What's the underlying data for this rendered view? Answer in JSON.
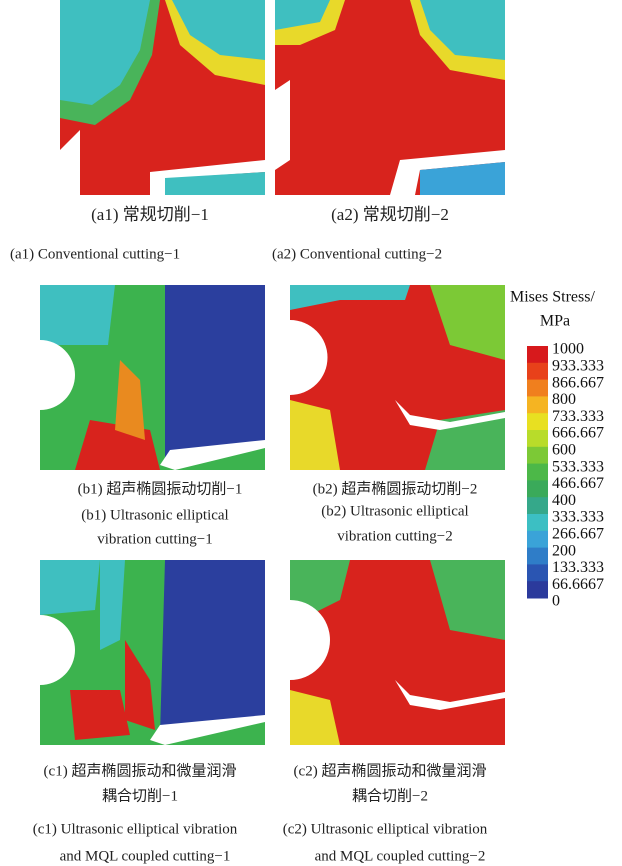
{
  "panels": [
    {
      "caption_cn": [
        "(a1) 常规切削−1"
      ],
      "caption_en": [
        "(a1) Conventional cutting−1"
      ]
    },
    {
      "caption_cn": [
        "(a2) 常规切削−2"
      ],
      "caption_en": [
        "(a2) Conventional cutting−2"
      ]
    },
    {
      "caption_cn": [
        "(b1) 超声椭圆振动切削−1"
      ],
      "caption_en": [
        "(b1) Ultrasonic elliptical",
        "vibration cutting−1"
      ]
    },
    {
      "caption_cn": [
        "(b2) 超声椭圆振动切削−2"
      ],
      "caption_en": [
        "(b2) Ultrasonic elliptical",
        "vibration cutting−2"
      ]
    },
    {
      "caption_cn": [
        "(c1) 超声椭圆振动和微量润滑",
        "耦合切削−1"
      ],
      "caption_en": [
        "(c1) Ultrasonic elliptical vibration",
        "and MQL coupled  cutting−1"
      ]
    },
    {
      "caption_cn": [
        "(c2) 超声椭圆振动和微量润滑",
        "耦合切削−2"
      ],
      "caption_en": [
        "(c2) Ultrasonic elliptical vibration",
        "and MQL coupled cutting−2"
      ]
    }
  ],
  "legend": {
    "title": "Mises Stress/",
    "unit": "MPa",
    "labels": [
      "1000",
      "933.333",
      "866.667",
      "800",
      "733.333",
      "666.667",
      "600",
      "533.333",
      "466.667",
      "400",
      "333.333",
      "266.667",
      "200",
      "133.333",
      "66.6667",
      "0"
    ]
  }
}
